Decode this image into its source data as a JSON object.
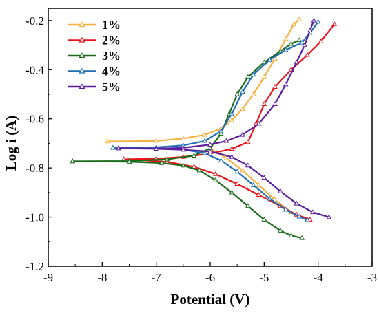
{
  "chart_data": {
    "type": "line",
    "xlabel": "Potential (V)",
    "ylabel": "Log i (A)",
    "xlim": [
      -9,
      -3
    ],
    "ylim": [
      -1.2,
      -0.15
    ],
    "x_ticks": [
      -9,
      -8,
      -7,
      -6,
      -5,
      -4,
      -3
    ],
    "y_ticks": [
      -1.2,
      -1.0,
      -0.8,
      -0.6,
      -0.4,
      -0.2
    ],
    "x_tick_labels": [
      "-9",
      "-8",
      "-7",
      "-6",
      "-5",
      "-4",
      "-3"
    ],
    "y_tick_labels": [
      "-1.2",
      "-1.0",
      "-0.8",
      "-0.6",
      "-0.4",
      "-0.2"
    ],
    "grid": false,
    "legend_position": "top-left",
    "series": [
      {
        "name": "1%",
        "color": "#f5b041",
        "anodic": [
          [
            -7.9,
            -0.692
          ],
          [
            -7.0,
            -0.69
          ],
          [
            -6.5,
            -0.68
          ],
          [
            -6.1,
            -0.665
          ],
          [
            -5.8,
            -0.64
          ],
          [
            -5.6,
            -0.605
          ],
          [
            -5.4,
            -0.56
          ],
          [
            -5.2,
            -0.5
          ],
          [
            -5.0,
            -0.43
          ],
          [
            -4.8,
            -0.355
          ],
          [
            -4.6,
            -0.275
          ],
          [
            -4.45,
            -0.215
          ],
          [
            -4.35,
            -0.195
          ]
        ],
        "cathodic": [
          [
            -6.0,
            -0.72
          ],
          [
            -5.7,
            -0.76
          ],
          [
            -5.4,
            -0.81
          ],
          [
            -5.1,
            -0.87
          ],
          [
            -4.8,
            -0.93
          ],
          [
            -4.5,
            -0.98
          ],
          [
            -4.2,
            -1.01
          ]
        ]
      },
      {
        "name": "2%",
        "color": "#e8141b",
        "anodic": [
          [
            -7.6,
            -0.765
          ],
          [
            -7.0,
            -0.762
          ],
          [
            -6.5,
            -0.755
          ],
          [
            -6.0,
            -0.742
          ],
          [
            -5.6,
            -0.722
          ],
          [
            -5.3,
            -0.695
          ],
          [
            -5.15,
            -0.62
          ],
          [
            -5.0,
            -0.54
          ],
          [
            -4.8,
            -0.47
          ],
          [
            -4.5,
            -0.4
          ],
          [
            -4.2,
            -0.34
          ],
          [
            -3.95,
            -0.285
          ],
          [
            -3.7,
            -0.215
          ]
        ],
        "cathodic": [
          [
            -7.6,
            -0.765
          ],
          [
            -6.8,
            -0.775
          ],
          [
            -6.3,
            -0.795
          ],
          [
            -5.9,
            -0.825
          ],
          [
            -5.5,
            -0.865
          ],
          [
            -5.1,
            -0.91
          ],
          [
            -4.7,
            -0.955
          ],
          [
            -4.4,
            -0.99
          ],
          [
            -4.15,
            -1.01
          ]
        ]
      },
      {
        "name": "3%",
        "color": "#1a6b1a",
        "anodic": [
          [
            -8.55,
            -0.773
          ],
          [
            -7.5,
            -0.772
          ],
          [
            -6.8,
            -0.765
          ],
          [
            -6.3,
            -0.75
          ],
          [
            -6.0,
            -0.72
          ],
          [
            -5.8,
            -0.66
          ],
          [
            -5.65,
            -0.58
          ],
          [
            -5.5,
            -0.5
          ],
          [
            -5.3,
            -0.43
          ],
          [
            -5.0,
            -0.37
          ],
          [
            -4.7,
            -0.325
          ],
          [
            -4.5,
            -0.295
          ],
          [
            -4.35,
            -0.28
          ]
        ],
        "cathodic": [
          [
            -8.55,
            -0.773
          ],
          [
            -7.5,
            -0.775
          ],
          [
            -6.9,
            -0.78
          ],
          [
            -6.5,
            -0.79
          ],
          [
            -6.2,
            -0.81
          ],
          [
            -5.9,
            -0.85
          ],
          [
            -5.6,
            -0.9
          ],
          [
            -5.3,
            -0.955
          ],
          [
            -5.0,
            -1.01
          ],
          [
            -4.7,
            -1.055
          ],
          [
            -4.5,
            -1.075
          ],
          [
            -4.3,
            -1.085
          ]
        ]
      },
      {
        "name": "4%",
        "color": "#1f6fb5",
        "anodic": [
          [
            -7.8,
            -0.718
          ],
          [
            -7.0,
            -0.716
          ],
          [
            -6.5,
            -0.708
          ],
          [
            -6.1,
            -0.69
          ],
          [
            -5.8,
            -0.65
          ],
          [
            -5.6,
            -0.58
          ],
          [
            -5.4,
            -0.49
          ],
          [
            -5.2,
            -0.42
          ],
          [
            -4.9,
            -0.36
          ],
          [
            -4.6,
            -0.32
          ],
          [
            -4.3,
            -0.29
          ],
          [
            -4.15,
            -0.25
          ],
          [
            -4.0,
            -0.205
          ]
        ],
        "cathodic": [
          [
            -7.8,
            -0.718
          ],
          [
            -7.0,
            -0.72
          ],
          [
            -6.5,
            -0.725
          ],
          [
            -6.1,
            -0.74
          ],
          [
            -5.8,
            -0.77
          ],
          [
            -5.5,
            -0.815
          ],
          [
            -5.2,
            -0.87
          ],
          [
            -4.9,
            -0.925
          ],
          [
            -4.6,
            -0.97
          ],
          [
            -4.35,
            -0.998
          ],
          [
            -4.2,
            -1.012
          ]
        ]
      },
      {
        "name": "5%",
        "color": "#5a1ca0",
        "anodic": [
          [
            -7.7,
            -0.72
          ],
          [
            -7.0,
            -0.721
          ],
          [
            -6.5,
            -0.718
          ],
          [
            -6.0,
            -0.705
          ],
          [
            -5.7,
            -0.69
          ],
          [
            -5.4,
            -0.665
          ],
          [
            -5.1,
            -0.62
          ],
          [
            -4.8,
            -0.54
          ],
          [
            -4.6,
            -0.46
          ],
          [
            -4.4,
            -0.37
          ],
          [
            -4.25,
            -0.3
          ],
          [
            -4.15,
            -0.24
          ],
          [
            -4.08,
            -0.2
          ]
        ],
        "cathodic": [
          [
            -7.7,
            -0.72
          ],
          [
            -7.0,
            -0.722
          ],
          [
            -6.5,
            -0.726
          ],
          [
            -6.0,
            -0.733
          ],
          [
            -5.6,
            -0.755
          ],
          [
            -5.3,
            -0.79
          ],
          [
            -5.0,
            -0.84
          ],
          [
            -4.7,
            -0.895
          ],
          [
            -4.4,
            -0.945
          ],
          [
            -4.1,
            -0.98
          ],
          [
            -3.8,
            -1.0
          ]
        ]
      }
    ]
  }
}
